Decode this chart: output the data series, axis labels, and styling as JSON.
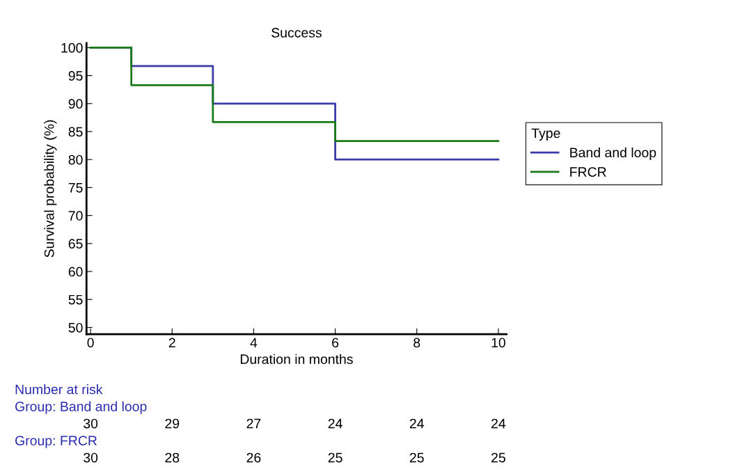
{
  "chart_data": {
    "type": "step",
    "title": "Success",
    "xlabel": "Duration in months",
    "ylabel": "Survival probability (%)",
    "legend_title": "Type",
    "legend": "right",
    "xlim": [
      -0.1,
      10.2
    ],
    "xticks": [
      0,
      2,
      4,
      6,
      8,
      10
    ],
    "ylim": [
      48.8,
      100.8
    ],
    "yticks": [
      50,
      55,
      60,
      65,
      70,
      75,
      80,
      85,
      90,
      95,
      100
    ],
    "grid": false,
    "marker": "none",
    "line_style": "solid",
    "series": [
      {
        "name": "Band and loop",
        "color": "#3b3ba8",
        "x": [
          0,
          1,
          3,
          6,
          10
        ],
        "values": [
          100,
          96.7,
          90,
          80,
          80
        ]
      },
      {
        "name": "FRCR",
        "color": "#1a7a1a",
        "x": [
          0,
          1,
          3,
          6,
          10
        ],
        "values": [
          100,
          93.3,
          86.7,
          83.3,
          83.3
        ]
      }
    ],
    "annotations": [
      "Number at risk",
      "Group: Band and loop",
      "30",
      "29",
      "27",
      "24",
      "24",
      "24",
      "Group: FRCR",
      "30",
      "28",
      "26",
      "25",
      "25",
      "25"
    ]
  }
}
